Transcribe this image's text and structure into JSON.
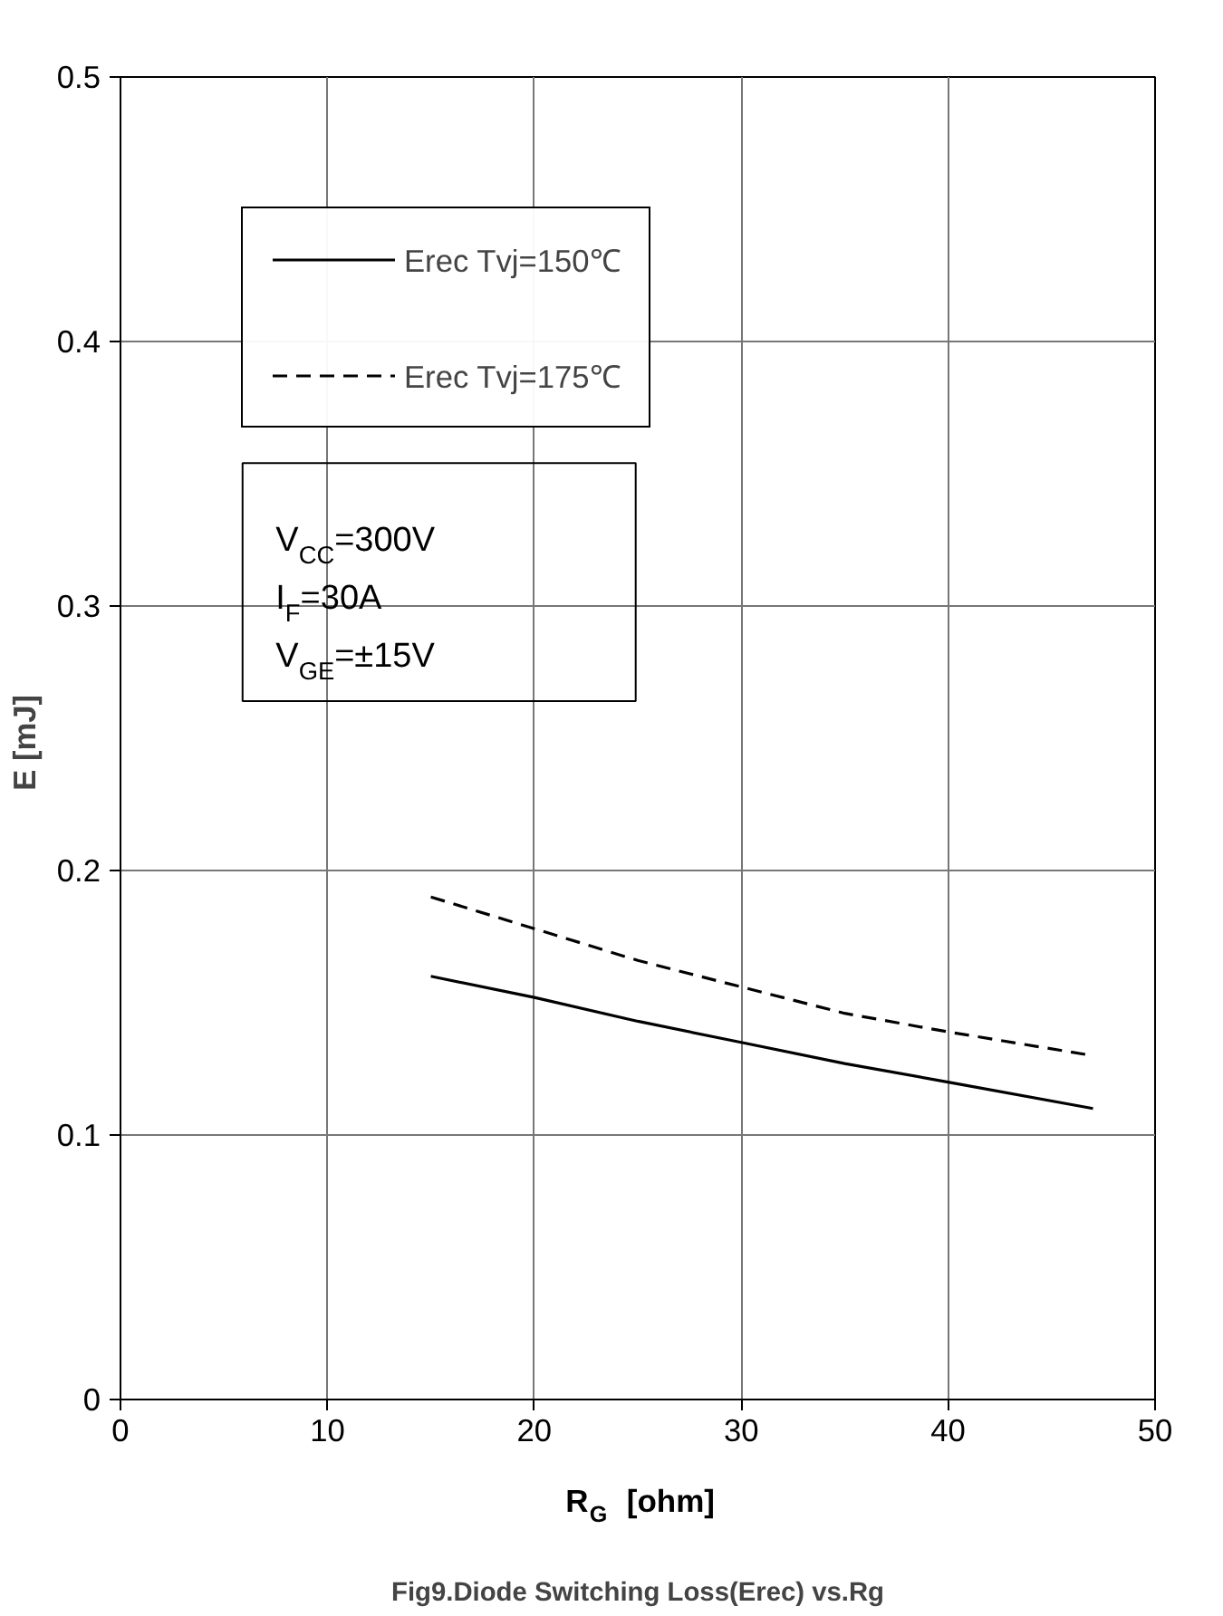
{
  "chart_data": {
    "type": "line",
    "xlabel": "R$_{G}$  [ohm]",
    "ylabel": "E  [mJ]",
    "title": "Fig9.Diode Switching Loss(Erec) vs.Rg",
    "xlim": [
      0,
      50
    ],
    "ylim": [
      0,
      0.5
    ],
    "xticks": [
      0,
      10,
      20,
      30,
      40,
      50
    ],
    "yticks": [
      0,
      0.1,
      0.2,
      0.3,
      0.4,
      0.5
    ],
    "grid": true,
    "legend": "top left",
    "marker": "none",
    "annotations": [
      "V$_{CC}$=300V\nI$_{F}$=30A\nV$_{GE}$=±15V"
    ],
    "series": [
      {
        "name": "Erec Tvj=150℃",
        "color": "#000000",
        "line_style": "solid",
        "x": [
          15,
          20,
          25,
          30,
          35,
          40,
          47
        ],
        "values": [
          0.16,
          0.152,
          0.143,
          0.135,
          0.127,
          0.12,
          0.11
        ]
      },
      {
        "name": "Erec Tvj=175℃",
        "color": "#000000",
        "line_style": "dashed",
        "x": [
          15,
          20,
          25,
          30,
          35,
          40,
          47
        ],
        "values": [
          0.19,
          0.178,
          0.166,
          0.156,
          0.146,
          0.139,
          0.13
        ]
      }
    ]
  }
}
